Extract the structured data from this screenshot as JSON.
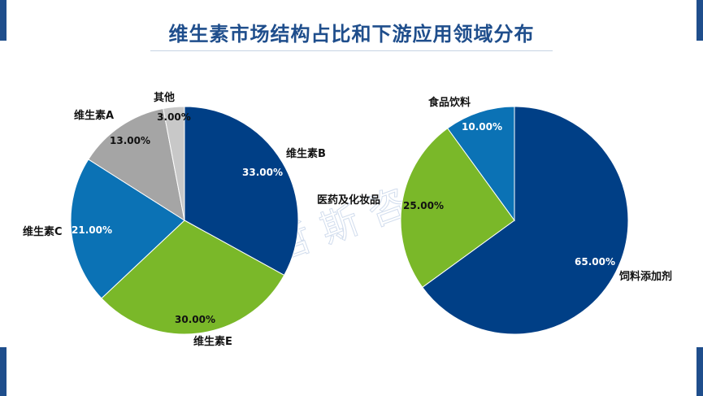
{
  "title": "维生素市场结构占比和下游应用领域分布",
  "watermark": "贝哲斯咨询",
  "colors": {
    "navy": "#003f86",
    "blue": "#0b72b5",
    "green": "#7ab829",
    "gray": "#a5a5a5",
    "lightgray": "#c8c8c8",
    "frame": "#1f4e8c"
  },
  "chart_data": [
    {
      "type": "pie",
      "title": "",
      "start": "12 o'clock, clockwise",
      "slices": [
        {
          "label": "维生素B",
          "value": 33.0,
          "value_label": "33.00%",
          "color": "#003f86"
        },
        {
          "label": "维生素E",
          "value": 30.0,
          "value_label": "30.00%",
          "color": "#7ab829"
        },
        {
          "label": "维生素C",
          "value": 21.0,
          "value_label": "21.00%",
          "color": "#0b72b5"
        },
        {
          "label": "维生素A",
          "value": 13.0,
          "value_label": "13.00%",
          "color": "#a5a5a5"
        },
        {
          "label": "其他",
          "value": 3.0,
          "value_label": "3.00%",
          "color": "#c8c8c8"
        }
      ]
    },
    {
      "type": "pie",
      "title": "",
      "start": "12 o'clock, clockwise",
      "slices": [
        {
          "label": "饲料添加剂",
          "value": 65.0,
          "value_label": "65.00%",
          "color": "#003f86"
        },
        {
          "label": "医药及化妆品",
          "value": 25.0,
          "value_label": "25.00%",
          "color": "#7ab829"
        },
        {
          "label": "食品饮料",
          "value": 10.0,
          "value_label": "10.00%",
          "color": "#0b72b5"
        }
      ]
    }
  ]
}
